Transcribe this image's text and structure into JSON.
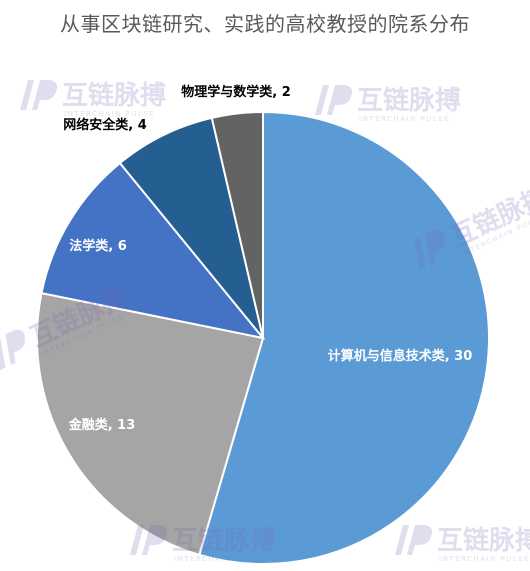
{
  "chart_data": {
    "type": "pie",
    "title": "从事区块链研究、实践的高校教授的院系分布",
    "categories": [
      "计算机与信息技术类",
      "金融类",
      "法学类",
      "网络安全类",
      "物理学与数学类"
    ],
    "values": [
      30,
      13,
      6,
      4,
      2
    ],
    "data_labels": [
      "计算机与信息技术类, 30",
      "金融类, 13",
      "法学类, 6",
      "网络安全类, 4",
      "物理学与数学类, 2"
    ],
    "colors": [
      "#5b9bd5",
      "#a5a5a5",
      "#4472c4",
      "#255e91",
      "#636363"
    ],
    "legend": "none",
    "label_position": [
      "inside",
      "inside",
      "inside",
      "outside",
      "outside"
    ]
  },
  "watermark": {
    "text": "互链脉搏",
    "subtext": "INTERCHAIN PULSE",
    "icon": "ip-logo-icon"
  }
}
